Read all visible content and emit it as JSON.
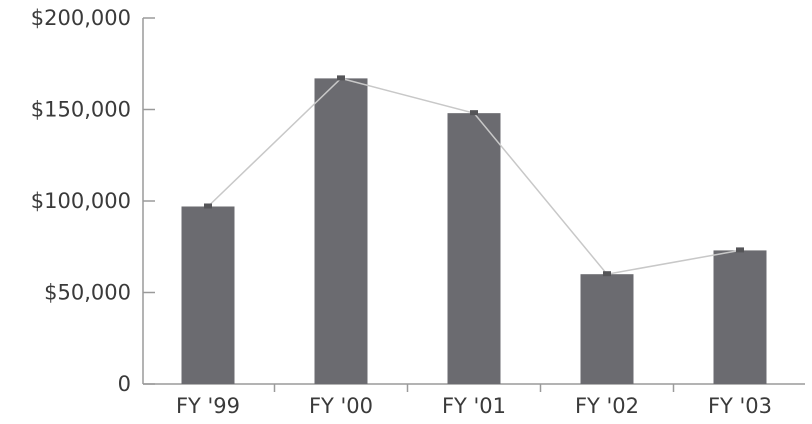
{
  "chart_data": {
    "type": "bar",
    "categories": [
      "FY '99",
      "FY '00",
      "FY '01",
      "FY '02",
      "FY '03"
    ],
    "values": [
      97000,
      167000,
      148000,
      60000,
      73000
    ],
    "overlay_line": true,
    "y_tick_labels": [
      "0",
      "$50,000",
      "$100,000",
      "$150,000",
      "$200,000"
    ],
    "y_ticks": [
      0,
      50000,
      100000,
      150000,
      200000
    ],
    "ylim": [
      0,
      200000
    ],
    "grid": false,
    "colors": {
      "bar": "#6b6b70",
      "line": "#c8c8c8",
      "axis": "#9a9a9a",
      "text": "#3a3a3a"
    }
  }
}
